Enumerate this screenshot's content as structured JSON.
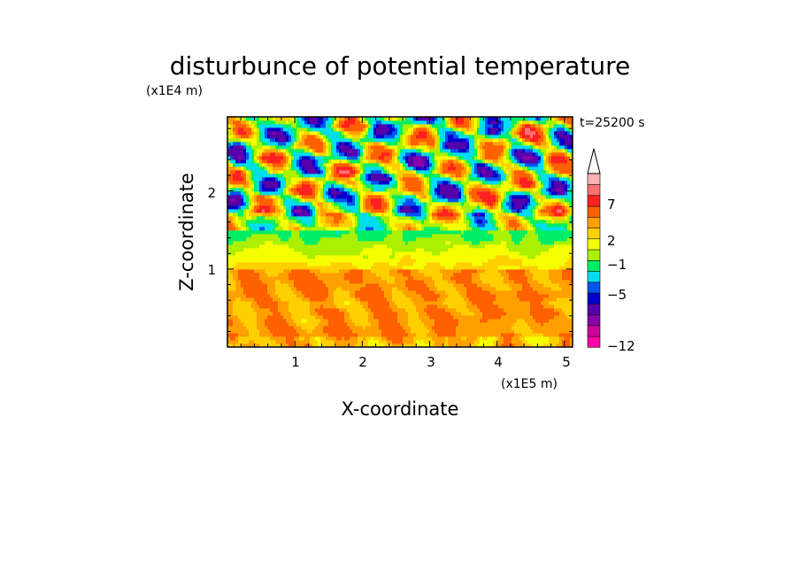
{
  "chart_data": {
    "type": "heatmap",
    "title": "disturbunce of potential temperature",
    "xlabel": "X-coordinate",
    "ylabel": "Z-coordinate",
    "x_unit": "(x1E5 m)",
    "y_unit": "(x1E4 m)",
    "time_label": "t=25200 s",
    "x_ticks": [
      "1",
      "2",
      "3",
      "4",
      "5"
    ],
    "y_ticks": [
      "1",
      "2"
    ],
    "xlim": [
      0,
      5.12
    ],
    "ylim": [
      0,
      2.95
    ],
    "colorbar": {
      "labels": [
        "7",
        "2",
        "−1",
        "−5",
        "−12"
      ],
      "label_values": [
        7,
        2,
        -1,
        -5,
        -12
      ],
      "colors": [
        "#ff00aa",
        "#cc0099",
        "#8800aa",
        "#5500aa",
        "#0000cc",
        "#0055ee",
        "#00ddee",
        "#00ee66",
        "#aaf000",
        "#f5ff00",
        "#ffd000",
        "#ffa000",
        "#ff6000",
        "#ff2020",
        "#ff7070",
        "#ffb0b0",
        "#ffffff"
      ]
    },
    "layers": [
      {
        "z_range": [
          0,
          1.0
        ],
        "dominant": "yellow / light orange",
        "approx_value": 2
      },
      {
        "z_range": [
          1.0,
          1.5
        ],
        "dominant": "green / cyan / yellow",
        "approx_value": -0.5
      },
      {
        "z_range": [
          1.5,
          2.95
        ],
        "dominant": "mixed blue / orange / red / green",
        "approx_value": 0
      }
    ]
  }
}
